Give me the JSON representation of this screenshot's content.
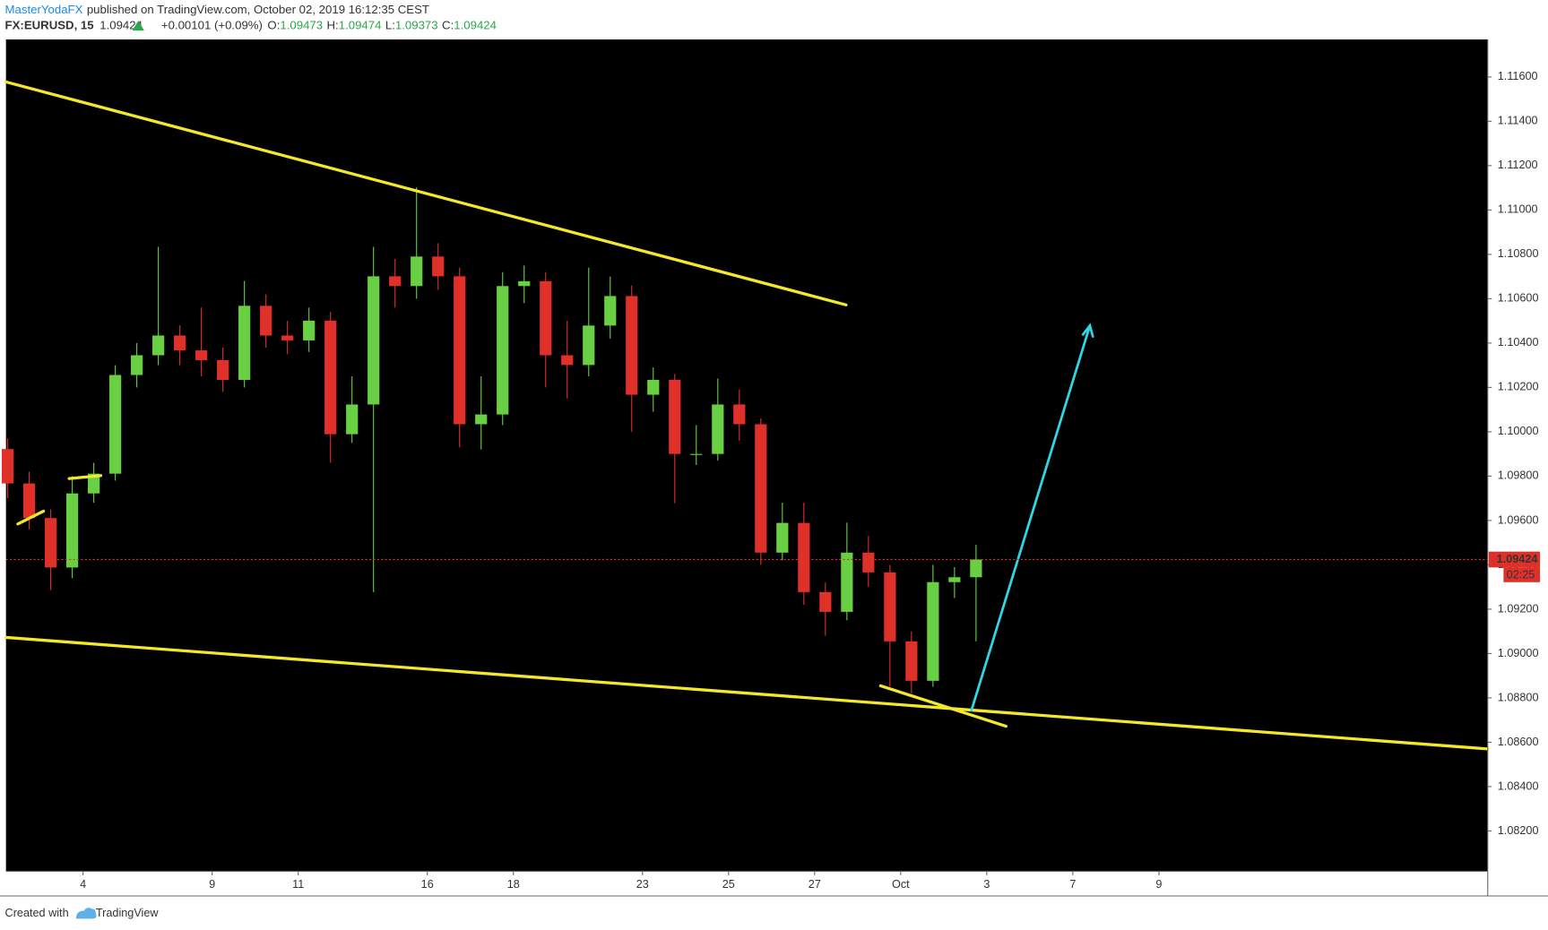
{
  "header": {
    "author": "MasterYodaFX",
    "published": "published on TradingView.com, October 02, 2019 16:12:35 CEST",
    "symbol": "FX:EURUSD, 15",
    "price": 1.09424,
    "change": "+0.00101 (+0.09%)",
    "ohlc_labels": [
      "O:",
      "H:",
      "L:",
      "C:"
    ],
    "ohlc": [
      1.09473,
      1.09474,
      1.09373,
      1.09424
    ]
  },
  "chart_data": {
    "type": "candlestick",
    "x": [
      -1.75,
      -1.25,
      -0.75,
      -0.25,
      0.25,
      0.75,
      1.25,
      1.75,
      2.25,
      2.75,
      3.25,
      3.75,
      4.25,
      4.75,
      5.25,
      5.75,
      6.25,
      6.75,
      7.25,
      7.75,
      8.25,
      8.75,
      9.25,
      9.75,
      10.25,
      10.75,
      11.25,
      11.75,
      12.25,
      12.75,
      13.25,
      13.75,
      14.25,
      14.75,
      15.25,
      15.75,
      16.25,
      16.75,
      17.25,
      17.75,
      18.25,
      18.75,
      19.25,
      19.75,
      20.25,
      20.75
    ],
    "open": [
      1.09922,
      1.09767,
      1.09611,
      1.09388,
      1.09722,
      1.09811,
      1.10256,
      1.10345,
      1.10434,
      1.10367,
      1.10323,
      1.10234,
      1.10568,
      1.10434,
      1.10412,
      1.10501,
      1.09989,
      1.10123,
      1.10701,
      1.10657,
      1.1079,
      1.10701,
      1.10034,
      1.10078,
      1.10657,
      1.10679,
      1.10345,
      1.10301,
      1.10479,
      1.10612,
      1.10167,
      1.10234,
      1.099,
      1.099,
      1.10123,
      1.10034,
      1.09455,
      1.09589,
      1.09277,
      1.09188,
      1.09455,
      1.09366,
      1.09055,
      1.08877,
      1.09322,
      1.09344
    ],
    "high": [
      1.0997,
      1.0982,
      1.0965,
      1.098,
      1.0986,
      1.103,
      1.104,
      1.10834,
      1.1048,
      1.1056,
      1.1038,
      1.1068,
      1.1062,
      1.105,
      1.1056,
      1.1054,
      1.1025,
      1.10834,
      1.1078,
      1.11102,
      1.1085,
      1.1074,
      1.1025,
      1.1072,
      1.1075,
      1.1072,
      1.105,
      1.1074,
      1.107,
      1.1066,
      1.1029,
      1.1026,
      1.1003,
      1.1024,
      1.1019,
      1.1006,
      1.0968,
      1.0968,
      1.0932,
      1.0959,
      1.0953,
      1.094,
      1.091,
      1.094,
      1.0939,
      1.0949
    ],
    "low": [
      1.097,
      1.0956,
      1.09286,
      1.0934,
      1.0968,
      1.0978,
      1.102,
      1.103,
      1.103,
      1.1025,
      1.1018,
      1.102,
      1.1038,
      1.1035,
      1.1036,
      1.0986,
      1.0995,
      1.09277,
      1.1056,
      1.106,
      1.1064,
      1.0993,
      1.0992,
      1.1003,
      1.1058,
      1.102,
      1.1015,
      1.1025,
      1.1042,
      1.1,
      1.1009,
      1.09678,
      1.0985,
      1.0987,
      1.0996,
      1.094,
      1.0942,
      1.0922,
      1.0908,
      1.0915,
      1.093,
      1.0885,
      1.0882,
      1.0885,
      1.0925,
      1.09055
    ],
    "close": [
      1.09767,
      1.09611,
      1.09388,
      1.09722,
      1.09811,
      1.10256,
      1.10345,
      1.10434,
      1.10367,
      1.10323,
      1.10234,
      1.10568,
      1.10434,
      1.10412,
      1.10501,
      1.09989,
      1.10123,
      1.10701,
      1.10657,
      1.1079,
      1.10701,
      1.10034,
      1.10078,
      1.10657,
      1.10679,
      1.10345,
      1.10301,
      1.10479,
      1.10612,
      1.10167,
      1.10234,
      1.099,
      1.099,
      1.10123,
      1.10034,
      1.09455,
      1.09589,
      1.09277,
      1.09188,
      1.09455,
      1.09366,
      1.09055,
      1.08877,
      1.09322,
      1.09344,
      1.09424
    ],
    "up_color": "#6ad043",
    "down_color": "#e0302a",
    "xlim": [
      -1.79,
      32.64
    ],
    "xticks": [
      {
        "value": 0,
        "label": "4"
      },
      {
        "value": 3,
        "label": "9"
      },
      {
        "value": 5,
        "label": "11"
      },
      {
        "value": 8,
        "label": "16"
      },
      {
        "value": 10,
        "label": "18"
      },
      {
        "value": 13,
        "label": "23"
      },
      {
        "value": 15,
        "label": "25"
      },
      {
        "value": 17,
        "label": "27"
      },
      {
        "value": 19,
        "label": "Oct"
      },
      {
        "value": 21,
        "label": "3"
      },
      {
        "value": 23,
        "label": "7"
      },
      {
        "value": 25,
        "label": "9"
      }
    ],
    "ylim": [
      1.08018,
      1.11769
    ],
    "yticks": [
      {
        "value": 1.082,
        "label": "1.08200"
      },
      {
        "value": 1.084,
        "label": "1.08400"
      },
      {
        "value": 1.086,
        "label": "1.08600"
      },
      {
        "value": 1.088,
        "label": "1.08800"
      },
      {
        "value": 1.09,
        "label": "1.09000"
      },
      {
        "value": 1.092,
        "label": "1.09200"
      },
      {
        "value": 1.094,
        "label": "1.09400"
      },
      {
        "value": 1.096,
        "label": "1.09600"
      },
      {
        "value": 1.098,
        "label": "1.09800"
      },
      {
        "value": 1.1,
        "label": "1.10000"
      },
      {
        "value": 1.102,
        "label": "1.10200"
      },
      {
        "value": 1.104,
        "label": "1.10400"
      },
      {
        "value": 1.106,
        "label": "1.10600"
      },
      {
        "value": 1.108,
        "label": "1.10800"
      },
      {
        "value": 1.11,
        "label": "1.11000"
      },
      {
        "value": 1.112,
        "label": "1.11200"
      },
      {
        "value": 1.114,
        "label": "1.11400"
      },
      {
        "value": 1.116,
        "label": "1.11600"
      }
    ],
    "grid": false,
    "last_price": 1.09424,
    "countdown": "02:25",
    "last_color": "#e0302a"
  },
  "footer": {
    "created_with": "Created with",
    "brand": "TradingView"
  }
}
